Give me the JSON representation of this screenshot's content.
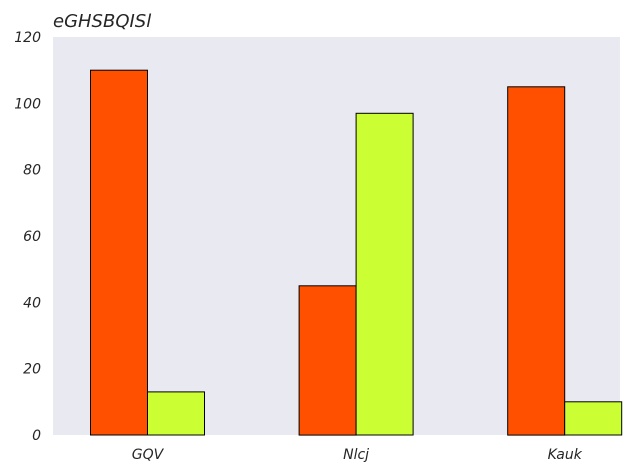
{
  "chart_data": {
    "type": "bar",
    "title": "eGHSBQISl",
    "xlabel": "",
    "ylabel": "",
    "categories": [
      "GQV",
      "Nlcj",
      "Kauk"
    ],
    "series": [
      {
        "values": [
          110,
          45,
          105
        ],
        "color": "#ff5000"
      },
      {
        "values": [
          13,
          97,
          10
        ],
        "color": "#ccff33"
      }
    ],
    "yticks": [
      0,
      20,
      40,
      60,
      80,
      100,
      120
    ],
    "ylim": [
      0,
      120
    ],
    "grid": false,
    "background": "#e9e9f2"
  }
}
